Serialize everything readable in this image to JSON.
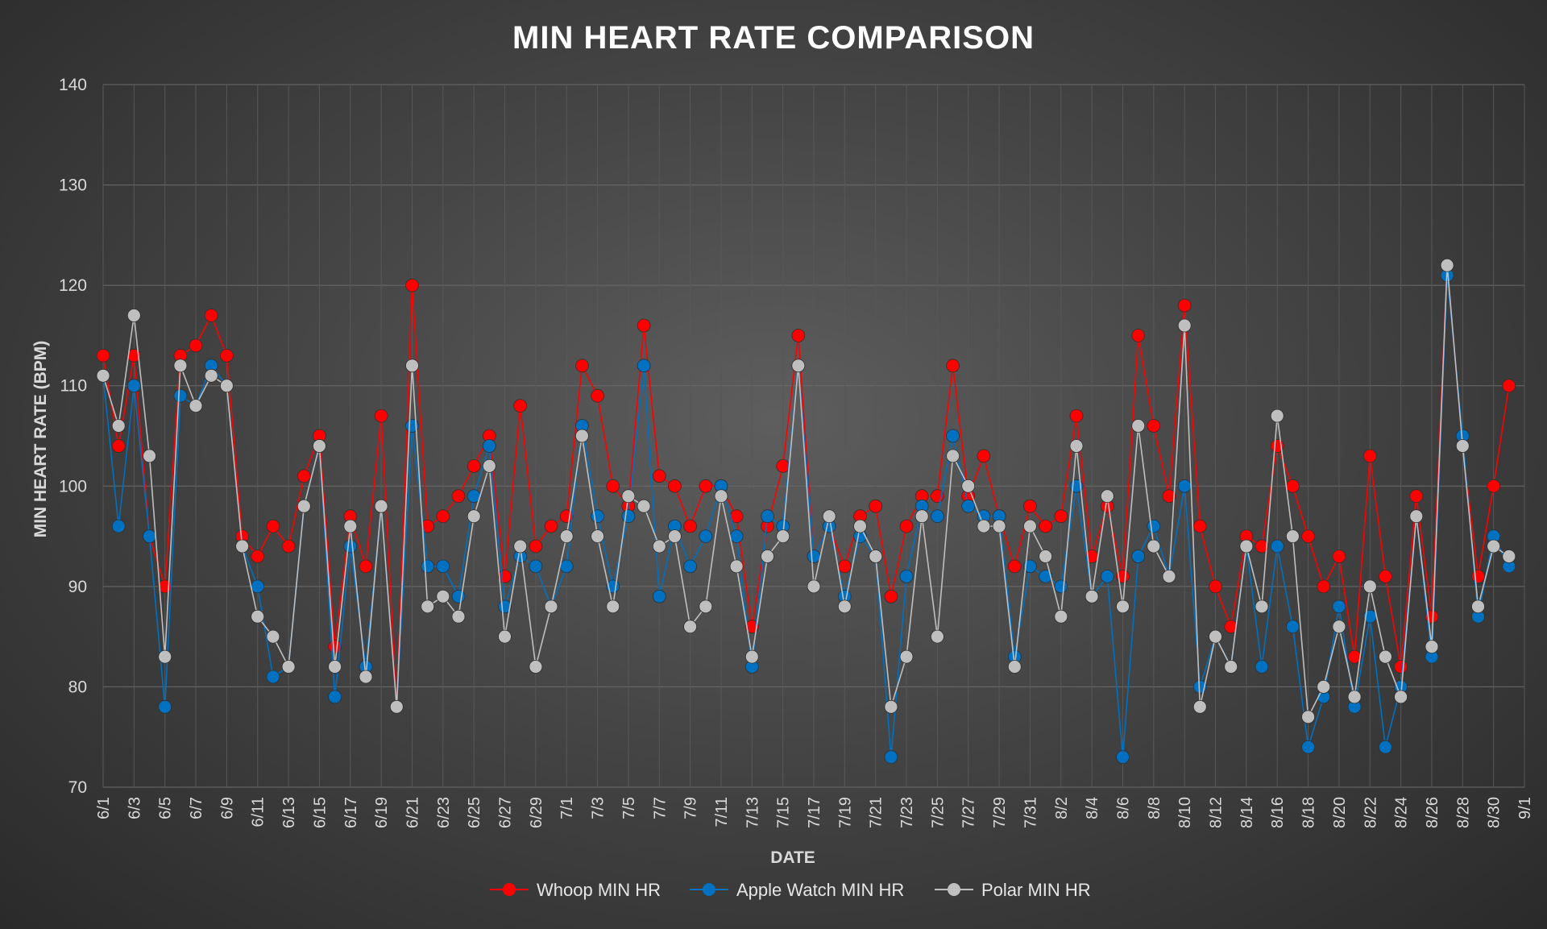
{
  "chart_data": {
    "type": "line",
    "title": "MIN HEART RATE COMPARISON",
    "xlabel": "DATE",
    "ylabel": "MIN HEART RATE (BPM)",
    "ylim": [
      70,
      140
    ],
    "yticks": [
      70,
      80,
      90,
      100,
      110,
      120,
      130,
      140
    ],
    "x": [
      "6/1",
      "6/2",
      "6/3",
      "6/4",
      "6/5",
      "6/6",
      "6/7",
      "6/8",
      "6/9",
      "6/10",
      "6/11",
      "6/12",
      "6/13",
      "6/14",
      "6/15",
      "6/16",
      "6/17",
      "6/18",
      "6/19",
      "6/20",
      "6/21",
      "6/22",
      "6/23",
      "6/24",
      "6/25",
      "6/26",
      "6/27",
      "6/28",
      "6/29",
      "6/30",
      "7/1",
      "7/2",
      "7/3",
      "7/4",
      "7/5",
      "7/6",
      "7/7",
      "7/8",
      "7/9",
      "7/10",
      "7/11",
      "7/12",
      "7/13",
      "7/14",
      "7/15",
      "7/16",
      "7/17",
      "7/18",
      "7/19",
      "7/20",
      "7/21",
      "7/22",
      "7/23",
      "7/24",
      "7/25",
      "7/26",
      "7/27",
      "7/28",
      "7/29",
      "7/30",
      "7/31",
      "8/1",
      "8/2",
      "8/3",
      "8/4",
      "8/5",
      "8/6",
      "8/7",
      "8/8",
      "8/9",
      "8/10",
      "8/11",
      "8/12",
      "8/13",
      "8/14",
      "8/15",
      "8/16",
      "8/17",
      "8/18",
      "8/19",
      "8/20",
      "8/21",
      "8/22",
      "8/23",
      "8/24",
      "8/25",
      "8/26",
      "8/27",
      "8/28",
      "8/29",
      "8/30",
      "8/31",
      "9/1"
    ],
    "xtick_labels": [
      "6/1",
      "6/3",
      "6/5",
      "6/7",
      "6/9",
      "6/11",
      "6/13",
      "6/15",
      "6/17",
      "6/19",
      "6/21",
      "6/23",
      "6/25",
      "6/27",
      "6/29",
      "7/1",
      "7/3",
      "7/5",
      "7/7",
      "7/9",
      "7/11",
      "7/13",
      "7/15",
      "7/17",
      "7/19",
      "7/21",
      "7/23",
      "7/25",
      "7/27",
      "7/29",
      "7/31",
      "8/2",
      "8/4",
      "8/6",
      "8/8",
      "8/10",
      "8/12",
      "8/14",
      "8/16",
      "8/18",
      "8/20",
      "8/22",
      "8/24",
      "8/26",
      "8/28",
      "8/30",
      "9/1"
    ],
    "grid": true,
    "legend_position": "bottom",
    "series": [
      {
        "name": "Whoop MIN HR",
        "color": "#ff0000",
        "values": [
          113,
          104,
          113,
          95,
          90,
          113,
          114,
          117,
          113,
          95,
          93,
          96,
          94,
          101,
          105,
          84,
          97,
          92,
          107,
          78,
          120,
          96,
          97,
          99,
          102,
          105,
          91,
          108,
          94,
          96,
          97,
          112,
          109,
          100,
          98,
          116,
          101,
          100,
          96,
          100,
          100,
          97,
          86,
          96,
          102,
          115,
          93,
          96,
          92,
          97,
          98,
          89,
          96,
          99,
          99,
          112,
          99,
          103,
          97,
          92,
          98,
          96,
          97,
          107,
          93,
          98,
          91,
          115,
          106,
          99,
          118,
          96,
          90,
          86,
          95,
          94,
          104,
          100,
          95,
          90,
          93,
          83,
          103,
          91,
          82,
          99,
          87,
          122,
          104,
          91,
          100,
          110,
          null
        ]
      },
      {
        "name": "Apple Watch MIN HR",
        "color": "#0070c0",
        "values": [
          111,
          96,
          110,
          95,
          78,
          109,
          108,
          112,
          110,
          94,
          90,
          81,
          82,
          98,
          104,
          79,
          94,
          82,
          98,
          78,
          106,
          92,
          92,
          89,
          99,
          104,
          88,
          93,
          92,
          88,
          92,
          106,
          97,
          90,
          97,
          112,
          89,
          96,
          92,
          95,
          100,
          95,
          82,
          97,
          96,
          112,
          93,
          96,
          89,
          95,
          93,
          73,
          91,
          98,
          97,
          105,
          98,
          97,
          97,
          83,
          92,
          91,
          90,
          100,
          89,
          91,
          73,
          93,
          96,
          91,
          100,
          80,
          85,
          82,
          94,
          82,
          94,
          86,
          74,
          79,
          88,
          78,
          87,
          74,
          80,
          97,
          83,
          121,
          105,
          87,
          95,
          92,
          null
        ]
      },
      {
        "name": "Polar MIN HR",
        "color": "#bfbfbf",
        "values": [
          111,
          106,
          117,
          103,
          83,
          112,
          108,
          111,
          110,
          94,
          87,
          85,
          82,
          98,
          104,
          82,
          96,
          81,
          98,
          78,
          112,
          88,
          89,
          87,
          97,
          102,
          85,
          94,
          82,
          88,
          95,
          105,
          95,
          88,
          99,
          98,
          94,
          95,
          86,
          88,
          99,
          92,
          83,
          93,
          95,
          112,
          90,
          97,
          88,
          96,
          93,
          78,
          83,
          97,
          85,
          103,
          100,
          96,
          96,
          82,
          96,
          93,
          87,
          104,
          89,
          99,
          88,
          106,
          94,
          91,
          116,
          78,
          85,
          82,
          94,
          88,
          107,
          95,
          77,
          80,
          86,
          79,
          90,
          83,
          79,
          97,
          84,
          122,
          104,
          88,
          94,
          93,
          null
        ]
      }
    ]
  }
}
